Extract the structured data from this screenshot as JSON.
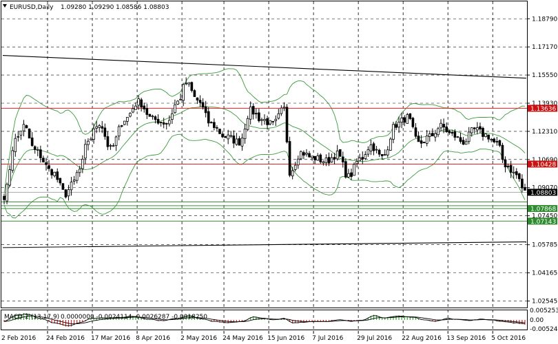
{
  "header": {
    "symbol_label": "EURUSD,Daily",
    "ohlc": "1.09280 1.09290 1.08586 1.08803"
  },
  "macd_header": {
    "label": "MACD-2 (13,17,9)",
    "values": "0.0000000 -0.0024114 -0.0026287 -0.0018250"
  },
  "colors": {
    "bull_candle": "#ffffff",
    "bear_candle": "#000000",
    "bollinger": "#3a9a3a",
    "resistance_line": "#e02020",
    "support_line": "#3c8c3c",
    "trend_channel": "#000000",
    "price_tag_current": "#000000",
    "price_tag_red": "#cc1111",
    "price_tag_green": "#2e8b2e",
    "macd_positive": "#33aa33",
    "macd_negative": "#dd2222"
  },
  "chart_data": {
    "type": "candlestick",
    "symbol": "EURUSD",
    "timeframe": "Daily",
    "price_axis_ticks": [
      "1.18790",
      "1.17170",
      "1.15550",
      "1.13930",
      "1.12310",
      "1.10690",
      "1.09070",
      "1.07450",
      "1.05785",
      "1.04165",
      "1.02545"
    ],
    "price_range": [
      1.0217,
      1.1979
    ],
    "date_labels": [
      "2 Feb 2016",
      "24 Feb 2016",
      "17 Mar 2016",
      "8 Apr 2016",
      "2 May 2016",
      "24 May 2016",
      "15 Jun 2016",
      "7 Jul 2016",
      "29 Jul 2016",
      "22 Aug 2016",
      "13 Sep 2016",
      "5 Oct 2016"
    ],
    "horizontal_levels": [
      {
        "label": "1.13636",
        "price": 1.13636,
        "kind": "resistance"
      },
      {
        "label": "1.10428",
        "price": 1.10428,
        "kind": "resistance"
      },
      {
        "label": "1.08803",
        "price": 1.08803,
        "kind": "current"
      },
      {
        "label": "1.07868",
        "price": 1.07868,
        "kind": "support"
      },
      {
        "label": "1.07143",
        "price": 1.07143,
        "kind": "support"
      },
      {
        "price": 1.0825,
        "kind": "support"
      },
      {
        "price": 1.0803,
        "kind": "support"
      }
    ],
    "trend_lines": [
      {
        "from_bar": 0,
        "from_price": 1.1668,
        "to_bar": 186,
        "to_price": 1.1537
      },
      {
        "from_bar": 0,
        "from_price": 1.0562,
        "to_bar": 186,
        "to_price": 1.0595
      }
    ],
    "anchors": [
      {
        "bar": 0,
        "price": 1.086
      },
      {
        "bar": 4,
        "price": 1.118
      },
      {
        "bar": 7,
        "price": 1.126
      },
      {
        "bar": 11,
        "price": 1.112
      },
      {
        "bar": 17,
        "price": 1.1
      },
      {
        "bar": 22,
        "price": 1.087
      },
      {
        "bar": 24,
        "price": 1.092
      },
      {
        "bar": 27,
        "price": 1.101
      },
      {
        "bar": 30,
        "price": 1.118
      },
      {
        "bar": 34,
        "price": 1.128
      },
      {
        "bar": 38,
        "price": 1.113
      },
      {
        "bar": 43,
        "price": 1.13
      },
      {
        "bar": 48,
        "price": 1.14
      },
      {
        "bar": 53,
        "price": 1.13
      },
      {
        "bar": 58,
        "price": 1.128
      },
      {
        "bar": 62,
        "price": 1.14
      },
      {
        "bar": 65,
        "price": 1.151
      },
      {
        "bar": 69,
        "price": 1.141
      },
      {
        "bar": 74,
        "price": 1.127
      },
      {
        "bar": 79,
        "price": 1.12
      },
      {
        "bar": 84,
        "price": 1.117
      },
      {
        "bar": 88,
        "price": 1.135
      },
      {
        "bar": 92,
        "price": 1.13
      },
      {
        "bar": 96,
        "price": 1.127
      },
      {
        "bar": 100,
        "price": 1.136
      },
      {
        "bar": 102,
        "price": 1.1
      },
      {
        "bar": 106,
        "price": 1.111
      },
      {
        "bar": 110,
        "price": 1.108
      },
      {
        "bar": 115,
        "price": 1.106
      },
      {
        "bar": 119,
        "price": 1.11
      },
      {
        "bar": 123,
        "price": 1.097
      },
      {
        "bar": 127,
        "price": 1.107
      },
      {
        "bar": 131,
        "price": 1.115
      },
      {
        "bar": 135,
        "price": 1.108
      },
      {
        "bar": 140,
        "price": 1.127
      },
      {
        "bar": 144,
        "price": 1.131
      },
      {
        "bar": 148,
        "price": 1.116
      },
      {
        "bar": 152,
        "price": 1.12
      },
      {
        "bar": 156,
        "price": 1.126
      },
      {
        "bar": 160,
        "price": 1.121
      },
      {
        "bar": 164,
        "price": 1.117
      },
      {
        "bar": 168,
        "price": 1.124
      },
      {
        "bar": 172,
        "price": 1.121
      },
      {
        "bar": 176,
        "price": 1.116
      },
      {
        "bar": 179,
        "price": 1.104
      },
      {
        "bar": 183,
        "price": 1.098
      },
      {
        "bar": 186,
        "price": 1.088
      }
    ],
    "macd_axis_ticks": [
      "0.0052534",
      "0.00",
      "-0.0052462"
    ],
    "macd_range": [
      -0.0057,
      0.0057
    ],
    "macd_anchors": [
      {
        "bar": 0,
        "value": -0.001
      },
      {
        "bar": 4,
        "value": 0.003
      },
      {
        "bar": 8,
        "value": 0.004
      },
      {
        "bar": 13,
        "value": 0.001
      },
      {
        "bar": 18,
        "value": -0.002
      },
      {
        "bar": 23,
        "value": -0.004
      },
      {
        "bar": 27,
        "value": -0.002
      },
      {
        "bar": 31,
        "value": 0.001
      },
      {
        "bar": 35,
        "value": 0.0015
      },
      {
        "bar": 40,
        "value": 0.0015
      },
      {
        "bar": 46,
        "value": 0.0025
      },
      {
        "bar": 52,
        "value": 0.0005
      },
      {
        "bar": 56,
        "value": -0.0005
      },
      {
        "bar": 62,
        "value": 0.001
      },
      {
        "bar": 66,
        "value": 0.003
      },
      {
        "bar": 70,
        "value": 0.001
      },
      {
        "bar": 75,
        "value": -0.001
      },
      {
        "bar": 80,
        "value": -0.002
      },
      {
        "bar": 85,
        "value": -0.001
      },
      {
        "bar": 89,
        "value": 0.002
      },
      {
        "bar": 93,
        "value": 0.001
      },
      {
        "bar": 97,
        "value": 0.0
      },
      {
        "bar": 100,
        "value": 0.001
      },
      {
        "bar": 103,
        "value": -0.002
      },
      {
        "bar": 107,
        "value": -0.0015
      },
      {
        "bar": 111,
        "value": -0.001
      },
      {
        "bar": 115,
        "value": -0.001
      },
      {
        "bar": 120,
        "value": 0.0
      },
      {
        "bar": 124,
        "value": -0.001
      },
      {
        "bar": 128,
        "value": 0.0
      },
      {
        "bar": 132,
        "value": 0.003
      },
      {
        "bar": 136,
        "value": 0.0015
      },
      {
        "bar": 141,
        "value": 0.0025
      },
      {
        "bar": 146,
        "value": 0.002
      },
      {
        "bar": 150,
        "value": 0.0
      },
      {
        "bar": 154,
        "value": -0.001
      },
      {
        "bar": 158,
        "value": 0.001
      },
      {
        "bar": 162,
        "value": 0.0005
      },
      {
        "bar": 166,
        "value": -0.0005
      },
      {
        "bar": 170,
        "value": 0.0005
      },
      {
        "bar": 174,
        "value": 0.0
      },
      {
        "bar": 178,
        "value": -0.001
      },
      {
        "bar": 182,
        "value": -0.002
      },
      {
        "bar": 186,
        "value": -0.0026
      }
    ]
  }
}
